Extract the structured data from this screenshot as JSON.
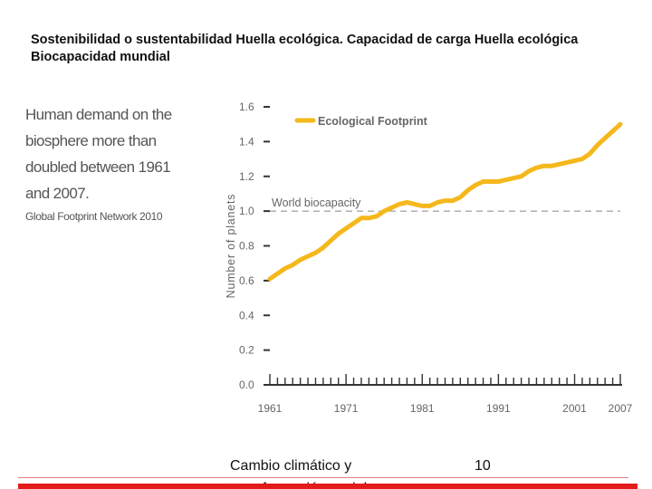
{
  "slide": {
    "title": "Sostenibilidad o sustentabilidad Huella ecológica. Capacidad de carga Huella ecológica Biocapacidad mundial",
    "note": "Human demand on the biosphere more than doubled between 1961 and 2007.",
    "source": "Global Footprint Network 2010",
    "footer_text": "Cambio climático y",
    "footer_text_cut": "transformación social",
    "page_number": "10"
  },
  "colors": {
    "footprint": "#f5b81c",
    "axis": "#333333",
    "biocapacity_line": "#888888",
    "accent": "#e31b1b"
  },
  "chart_data": {
    "type": "line",
    "ylabel": "Number of planets",
    "xlabel": "",
    "ylim": [
      0,
      1.6
    ],
    "xlim": [
      1961,
      2007
    ],
    "y_ticks": [
      0.0,
      0.2,
      0.4,
      0.6,
      0.8,
      1.0,
      1.2,
      1.4,
      1.6
    ],
    "y_tick_labels": [
      "0.0",
      "0.2",
      "0.4",
      "0.6",
      "0.8",
      "1.0",
      "1.2",
      "1.4",
      "1.6"
    ],
    "x_ticks": [
      1961,
      1971,
      1981,
      1991,
      2001,
      2007
    ],
    "legend": {
      "label": "Ecological Footprint",
      "placement": "top-left"
    },
    "reference_line": {
      "label": "World biocapacity",
      "y": 1.0,
      "style": "dashed"
    },
    "series": [
      {
        "name": "Ecological Footprint",
        "x": [
          1961,
          1962,
          1963,
          1964,
          1965,
          1966,
          1967,
          1968,
          1969,
          1970,
          1971,
          1972,
          1973,
          1974,
          1975,
          1976,
          1977,
          1978,
          1979,
          1980,
          1981,
          1982,
          1983,
          1984,
          1985,
          1986,
          1987,
          1988,
          1989,
          1990,
          1991,
          1992,
          1993,
          1994,
          1995,
          1996,
          1997,
          1998,
          1999,
          2000,
          2001,
          2002,
          2003,
          2004,
          2005,
          2006,
          2007
        ],
        "y": [
          0.61,
          0.64,
          0.67,
          0.69,
          0.72,
          0.74,
          0.76,
          0.79,
          0.83,
          0.87,
          0.9,
          0.93,
          0.96,
          0.96,
          0.97,
          1.0,
          1.02,
          1.04,
          1.05,
          1.04,
          1.03,
          1.03,
          1.05,
          1.06,
          1.06,
          1.08,
          1.12,
          1.15,
          1.17,
          1.17,
          1.17,
          1.18,
          1.19,
          1.2,
          1.23,
          1.25,
          1.26,
          1.26,
          1.27,
          1.28,
          1.29,
          1.3,
          1.33,
          1.38,
          1.42,
          1.46,
          1.5
        ]
      }
    ]
  }
}
